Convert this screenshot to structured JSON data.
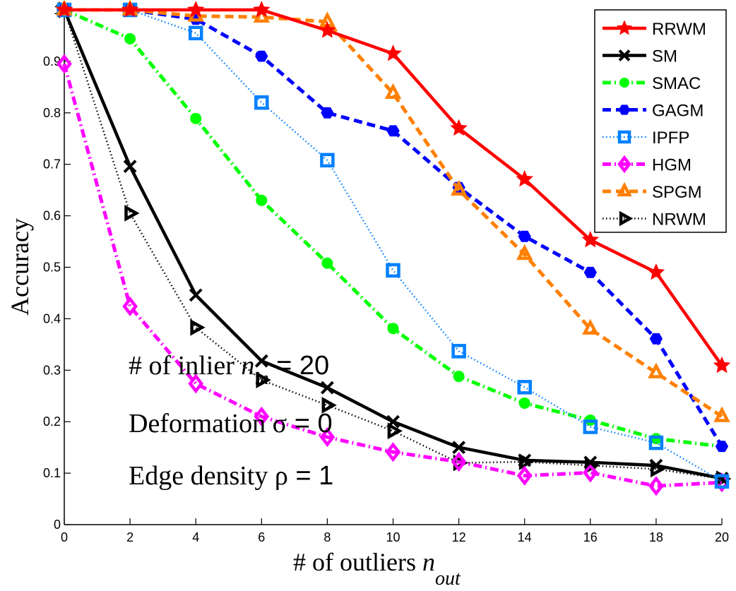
{
  "chart_data": {
    "type": "line",
    "title": "",
    "xlabel": "# of outliers n_out",
    "xlabel_main": "# of outliers ",
    "xlabel_var": "n",
    "xlabel_sub": "out",
    "ylabel": "Accuracy",
    "xlim": [
      0,
      20
    ],
    "ylim": [
      0,
      1
    ],
    "grid": false,
    "legend_position": "top-right",
    "xticks": [
      0,
      2,
      4,
      6,
      8,
      10,
      12,
      14,
      16,
      18,
      20
    ],
    "xtick_labels": [
      "0",
      "2",
      "4",
      "6",
      "8",
      "10",
      "12",
      "14",
      "16",
      "18",
      "20"
    ],
    "yticks": [
      0,
      0.1,
      0.2,
      0.3,
      0.4,
      0.5,
      0.6,
      0.7,
      0.8,
      0.9,
      1
    ],
    "ytick_labels": [
      "0",
      "0.1",
      "0.2",
      "0.3",
      "0.4",
      "0.5",
      "0.6",
      "0.7",
      "0.8",
      "0.9",
      "1"
    ],
    "x": [
      0,
      2,
      4,
      6,
      8,
      10,
      12,
      14,
      16,
      18,
      20
    ],
    "series": [
      {
        "name": "RRWM",
        "color": "#ff0000",
        "dash": "solid",
        "marker": "star",
        "values": [
          1.0,
          1.0,
          1.0,
          1.0,
          0.96,
          0.915,
          0.77,
          0.671,
          0.553,
          0.49,
          0.309
        ]
      },
      {
        "name": "SM",
        "color": "#000000",
        "dash": "solid",
        "marker": "x",
        "values": [
          1.0,
          0.696,
          0.446,
          0.318,
          0.266,
          0.2,
          0.15,
          0.125,
          0.121,
          0.115,
          0.09
        ]
      },
      {
        "name": "SMAC",
        "color": "#00ff00",
        "dash": "dashdot",
        "marker": "circle",
        "values": [
          1.0,
          0.944,
          0.789,
          0.63,
          0.508,
          0.381,
          0.288,
          0.236,
          0.203,
          0.167,
          0.152
        ]
      },
      {
        "name": "GAGM",
        "color": "#0000ff",
        "dash": "dashed",
        "marker": "hexagon",
        "values": [
          1.0,
          1.0,
          0.982,
          0.91,
          0.8,
          0.765,
          0.655,
          0.56,
          0.49,
          0.361,
          0.152
        ]
      },
      {
        "name": "IPFP",
        "color": "#0080ff",
        "dash": "dotted",
        "marker": "square",
        "values": [
          1.0,
          1.0,
          0.955,
          0.82,
          0.708,
          0.494,
          0.337,
          0.267,
          0.19,
          0.159,
          0.084
        ]
      },
      {
        "name": "HGM",
        "color": "#ff00ff",
        "dash": "dashdot",
        "marker": "diamond",
        "values": [
          0.895,
          0.424,
          0.274,
          0.21,
          0.17,
          0.141,
          0.122,
          0.095,
          0.101,
          0.075,
          0.082
        ]
      },
      {
        "name": "SPGM",
        "color": "#ff8000",
        "dash": "dashed",
        "marker": "triangle-up",
        "values": [
          1.0,
          1.0,
          0.988,
          0.986,
          0.977,
          0.838,
          0.65,
          0.525,
          0.38,
          0.295,
          0.21
        ]
      },
      {
        "name": "NRWM",
        "color": "#000000",
        "dash": "dotted",
        "marker": "triangle-right",
        "values": [
          1.0,
          0.605,
          0.383,
          0.281,
          0.232,
          0.182,
          0.12,
          0.122,
          0.115,
          0.108,
          0.089
        ]
      }
    ],
    "annotations": [
      {
        "text_pre": "# of inlier ",
        "var": "n",
        "sub": "in",
        "text_post": " = 20"
      },
      {
        "text_pre": "Deformation ",
        "var": "σ",
        "sub": "",
        "text_post": " = 0"
      },
      {
        "text_pre": "Edge density ",
        "var": "ρ",
        "sub": "",
        "text_post": " = 1"
      }
    ]
  }
}
